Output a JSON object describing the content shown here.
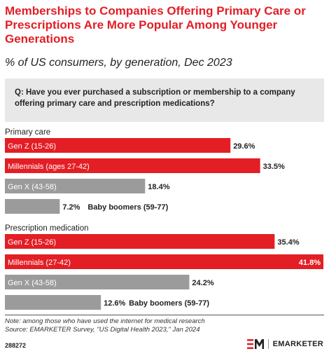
{
  "header": {
    "title": "Memberships to Companies Offering Primary Care or Prescriptions Are More Popular Among Younger Generations",
    "subtitle": "% of US consumers, by generation, Dec 2023"
  },
  "question": "Q: Have you ever purchased a subscription or membership to a company offering primary care and prescription medications?",
  "colors": {
    "accent": "#e31e24",
    "gray": "#9b9b9b",
    "question_bg": "#e8e8e8"
  },
  "chart_data": {
    "type": "bar",
    "orientation": "horizontal",
    "unit": "%",
    "groups": [
      {
        "label": "Primary care",
        "categories": [
          "Gen Z (15-26)",
          "Millennials (ages 27-42)",
          "Gen X (43-58)",
          "Baby boomers (59-77)"
        ],
        "values": [
          29.6,
          33.5,
          18.4,
          7.2
        ],
        "value_labels": [
          "29.6%",
          "33.5%",
          "18.4%",
          "7.2%"
        ],
        "colors": [
          "#e31e24",
          "#e31e24",
          "#9b9b9b",
          "#9b9b9b"
        ]
      },
      {
        "label": "Prescription medication",
        "categories": [
          "Gen Z (15-26)",
          "Millennials (27-42)",
          "Gen X (43-58)",
          "Baby boomers (59-77)"
        ],
        "values": [
          35.4,
          41.8,
          24.2,
          12.6
        ],
        "value_labels": [
          "35.4%",
          "41.8%",
          "24.2%",
          "12.6%"
        ],
        "colors": [
          "#e31e24",
          "#e31e24",
          "#9b9b9b",
          "#9b9b9b"
        ]
      }
    ],
    "xlim": [
      0,
      41.8
    ],
    "grid": false,
    "legend": "none"
  },
  "footer": {
    "note": "Note: among those who have used the internet for medical research",
    "source": "Source: EMARKETER Survey, \"US Digital Health 2023,\" Jan 2024",
    "chart_id": "288272",
    "brand": "EMARKETER",
    "logo_icon": "em-logo-icon"
  }
}
